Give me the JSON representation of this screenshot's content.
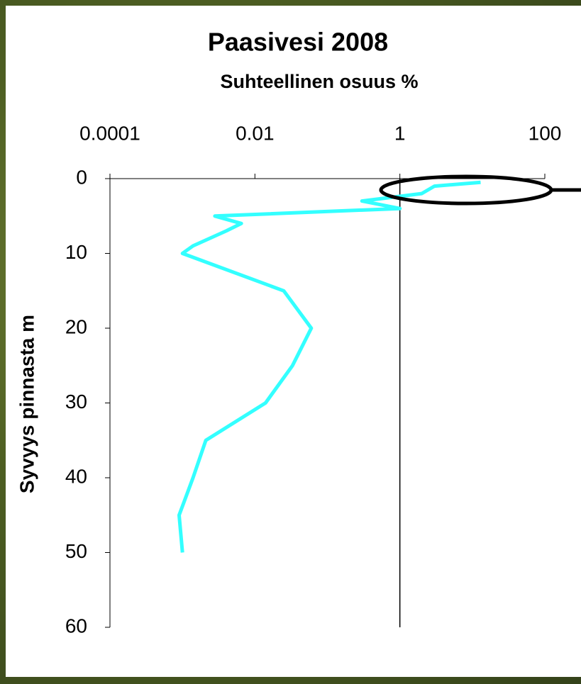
{
  "chart_data": {
    "type": "line",
    "title": "Paasivesi 2008",
    "subtitle": "Suhteellinen osuus %",
    "y_label": "Syvyys pinnasta m",
    "xscale": "log",
    "xlim": [
      0.0001,
      100
    ],
    "xticks": [
      0.0001,
      0.01,
      1,
      100
    ],
    "ylim": [
      0,
      60
    ],
    "yticks": [
      0,
      10,
      20,
      30,
      40,
      50,
      60
    ],
    "y_inverted": true,
    "y_axis_at": 1,
    "series": [
      {
        "color": "#33ffff",
        "x": [
          13,
          3,
          2,
          0.3,
          1,
          0.0028,
          0.0065,
          0.004,
          0.0014,
          0.001,
          0.025,
          0.06,
          0.033,
          0.014,
          0.0021,
          0.0014,
          0.0009,
          0.001
        ],
        "y": [
          0.5,
          1,
          2,
          3,
          4,
          5,
          6,
          7,
          9,
          10,
          15,
          20,
          25,
          30,
          35,
          40,
          45,
          50
        ]
      }
    ]
  }
}
